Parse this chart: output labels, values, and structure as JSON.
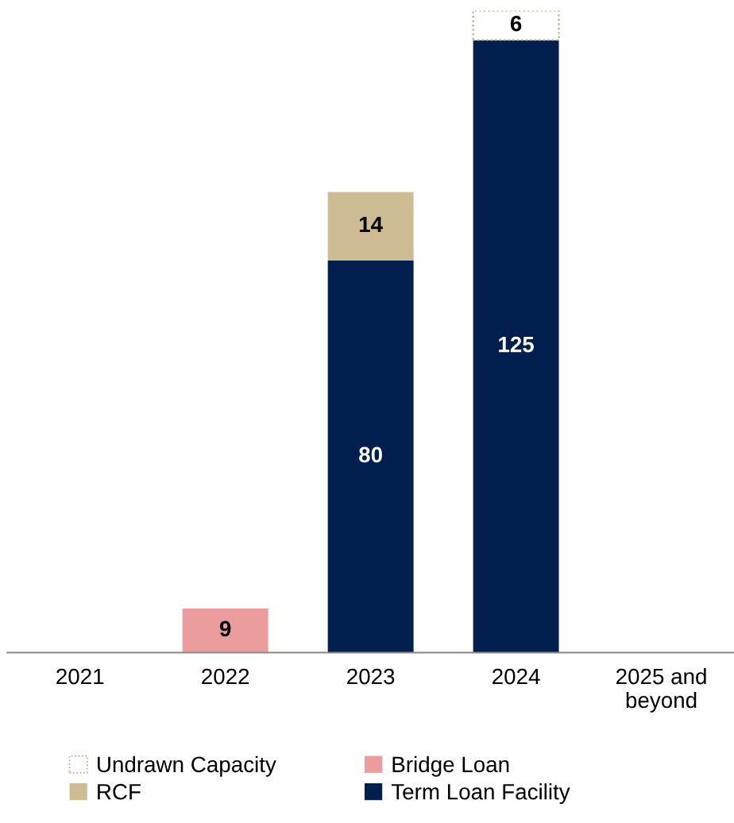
{
  "chart_data": {
    "type": "bar",
    "stacked": true,
    "data_labels": true,
    "legend": "bottom",
    "categories": [
      "2021",
      "2022",
      "2023",
      "2024",
      "2025 and\nbeyond"
    ],
    "series": [
      {
        "name": "Bridge Loan",
        "color": "#eb9c9c",
        "values": [
          null,
          9,
          null,
          null,
          null
        ]
      },
      {
        "name": "Term Loan Facility",
        "color": "#001f4f",
        "values": [
          null,
          null,
          80,
          125,
          null
        ]
      },
      {
        "name": "RCF",
        "color": "#cdbb94",
        "values": [
          null,
          null,
          14,
          null,
          null
        ]
      },
      {
        "name": "Undrawn Capacity",
        "color": "#ffffff",
        "line_style": "dotted",
        "values": [
          null,
          null,
          null,
          6,
          null
        ]
      }
    ]
  }
}
